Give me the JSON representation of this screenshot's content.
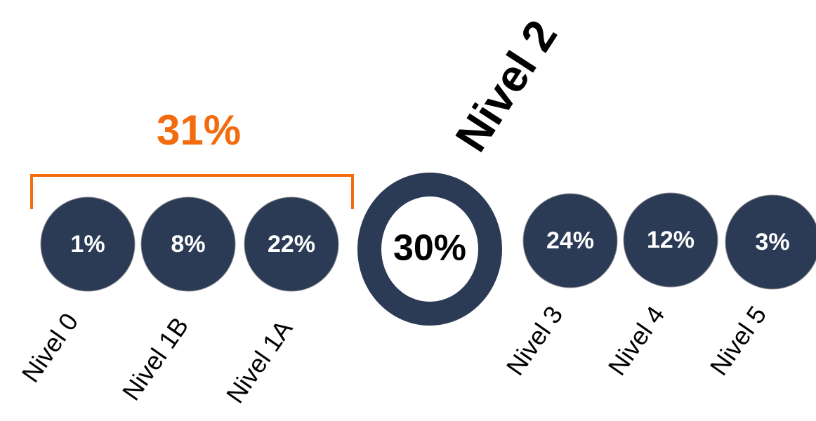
{
  "group": {
    "label": "31%"
  },
  "levels": [
    {
      "name": "Nivel 0",
      "value": "1%"
    },
    {
      "name": "Nivel 1B",
      "value": "8%"
    },
    {
      "name": "Nivel 1A",
      "value": "22%"
    },
    {
      "name": "Nivel 2",
      "value": "30%"
    },
    {
      "name": "Nivel 3",
      "value": "24%"
    },
    {
      "name": "Nivel 4",
      "value": "12%"
    },
    {
      "name": "Nivel 5",
      "value": "3%"
    }
  ]
}
